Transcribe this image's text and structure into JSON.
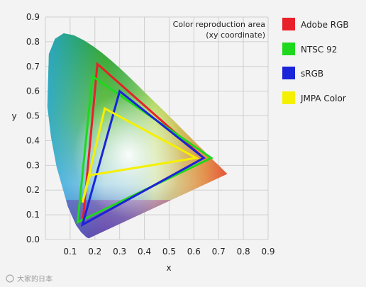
{
  "chart_data": {
    "type": "scatter",
    "chart_kind": "CIE 1931 xy chromaticity diagram with color gamut triangles",
    "title": "",
    "note_lines": [
      "Color reproduction area",
      "(xy coordinate)"
    ],
    "xlabel": "x",
    "ylabel": "y",
    "xlim": [
      0,
      0.9
    ],
    "ylim": [
      0,
      0.9
    ],
    "x_ticks": [
      "0.1",
      "0.2",
      "0.3",
      "0.4",
      "0.5",
      "0.6",
      "0.7",
      "0.8",
      "0.9"
    ],
    "y_ticks": [
      "0.0",
      "0.1",
      "0.2",
      "0.3",
      "0.4",
      "0.5",
      "0.6",
      "0.7",
      "0.8",
      "0.9"
    ],
    "grid": true,
    "legend_position": "right",
    "spectral_locus": [
      [
        0.175,
        0.005
      ],
      [
        0.166,
        0.009
      ],
      [
        0.144,
        0.03
      ],
      [
        0.124,
        0.058
      ],
      [
        0.091,
        0.133
      ],
      [
        0.045,
        0.295
      ],
      [
        0.023,
        0.413
      ],
      [
        0.008,
        0.538
      ],
      [
        0.014,
        0.75
      ],
      [
        0.039,
        0.812
      ],
      [
        0.074,
        0.834
      ],
      [
        0.115,
        0.826
      ],
      [
        0.155,
        0.806
      ],
      [
        0.193,
        0.782
      ],
      [
        0.23,
        0.754
      ],
      [
        0.266,
        0.724
      ],
      [
        0.302,
        0.692
      ],
      [
        0.337,
        0.659
      ],
      [
        0.373,
        0.624
      ],
      [
        0.408,
        0.589
      ],
      [
        0.444,
        0.554
      ],
      [
        0.479,
        0.52
      ],
      [
        0.513,
        0.486
      ],
      [
        0.547,
        0.452
      ],
      [
        0.579,
        0.42
      ],
      [
        0.608,
        0.391
      ],
      [
        0.632,
        0.367
      ],
      [
        0.654,
        0.345
      ],
      [
        0.672,
        0.327
      ],
      [
        0.686,
        0.313
      ],
      [
        0.697,
        0.303
      ],
      [
        0.713,
        0.287
      ],
      [
        0.735,
        0.265
      ]
    ],
    "series": [
      {
        "name": "Adobe RGB",
        "color": "#e8202a",
        "points": [
          [
            0.64,
            0.33
          ],
          [
            0.21,
            0.71
          ],
          [
            0.15,
            0.06
          ]
        ]
      },
      {
        "name": "NTSC 92",
        "color": "#1ed81e",
        "points": [
          [
            0.67,
            0.33
          ],
          [
            0.19,
            0.66
          ],
          [
            0.13,
            0.07
          ]
        ]
      },
      {
        "name": "sRGB",
        "color": "#1a24d8",
        "points": [
          [
            0.64,
            0.33
          ],
          [
            0.3,
            0.6
          ],
          [
            0.15,
            0.06
          ]
        ]
      },
      {
        "name": "JMPA Color",
        "color": "#f5f000",
        "points": [
          [
            0.61,
            0.33
          ],
          [
            0.24,
            0.53
          ],
          [
            0.15,
            0.15
          ],
          [
            0.18,
            0.26
          ]
        ]
      }
    ]
  },
  "watermark": "大家的日本"
}
